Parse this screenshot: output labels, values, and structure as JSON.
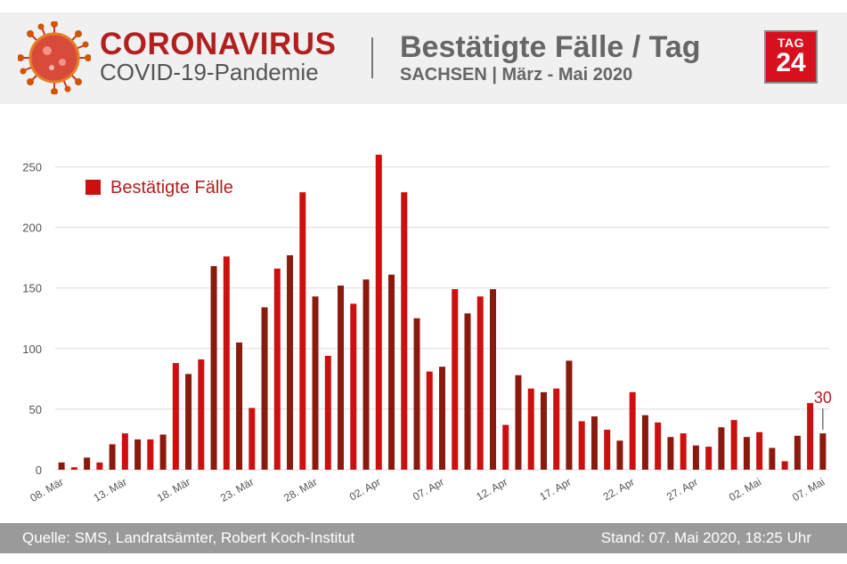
{
  "header": {
    "title": "CORONAVIRUS",
    "subtitle": "COVID-19-Pandemie",
    "chart_title": "Bestätigte Fälle / Tag",
    "chart_subtitle": "SACHSEN | März - Mai 2020",
    "logo_top": "TAG",
    "logo_num": "24"
  },
  "footer": {
    "source": "Quelle: SMS, Landratsämter, Robert Koch-Institut",
    "stand": "Stand: 07. Mai 2020, 18:25 Uhr"
  },
  "colors": {
    "bar_dark": "#8b1a0e",
    "bar_red": "#cc0f0f",
    "accent": "#b21f1f",
    "footer_bg": "#9a9a9a",
    "header_bg": "#f0f0f0"
  },
  "chart_data": {
    "type": "bar",
    "categories": [
      "08. Mär",
      "09. Mär",
      "10. Mär",
      "11. Mär",
      "12. Mär",
      "13. Mär",
      "14. Mär",
      "15. Mär",
      "16. Mär",
      "17. Mär",
      "18. Mär",
      "19. Mär",
      "20. Mär",
      "21. Mär",
      "22. Mär",
      "23. Mär",
      "24. Mär",
      "25. Mär",
      "26. Mär",
      "27. Mär",
      "28. Mär",
      "29. Mär",
      "30. Mär",
      "31. Mär",
      "01. Apr",
      "02. Apr",
      "03. Apr",
      "04. Apr",
      "05. Apr",
      "06. Apr",
      "07. Apr",
      "08. Apr",
      "09. Apr",
      "10. Apr",
      "11. Apr",
      "12. Apr",
      "13. Apr",
      "14. Apr",
      "15. Apr",
      "16. Apr",
      "17. Apr",
      "18. Apr",
      "19. Apr",
      "20. Apr",
      "21. Apr",
      "22. Apr",
      "23. Apr",
      "24. Apr",
      "25. Apr",
      "26. Apr",
      "27. Apr",
      "28. Apr",
      "29. Apr",
      "30. Apr",
      "01. Mai",
      "02. Mai",
      "03. Mai",
      "04. Mai",
      "05. Mai",
      "06. Mai",
      "07. Mai"
    ],
    "values": [
      6,
      2,
      10,
      6,
      21,
      30,
      25,
      25,
      29,
      88,
      79,
      91,
      168,
      176,
      105,
      51,
      134,
      166,
      177,
      229,
      143,
      94,
      152,
      137,
      157,
      260,
      161,
      229,
      125,
      81,
      85,
      149,
      129,
      143,
      149,
      37,
      78,
      67,
      64,
      67,
      90,
      40,
      44,
      33,
      24,
      64,
      45,
      39,
      27,
      30,
      20,
      19,
      35,
      41,
      27,
      31,
      18,
      7,
      28,
      55,
      30
    ],
    "series": [
      {
        "name": "Bestätigte Fälle"
      }
    ],
    "x_tick_labels": [
      "08. Mär",
      "13. Mär",
      "18. Mär",
      "23. Mär",
      "28. Mär",
      "02. Apr",
      "07. Apr",
      "12. Apr",
      "17. Apr",
      "22. Apr",
      "27. Apr",
      "02. Mai",
      "07. Mai"
    ],
    "y_ticks": [
      0,
      50,
      100,
      150,
      200,
      250
    ],
    "ylim": [
      0,
      275
    ],
    "annotation": {
      "category": "07. Mai",
      "text": "30"
    },
    "legend": "top-left",
    "grid": true,
    "xlabel": "",
    "ylabel": ""
  }
}
